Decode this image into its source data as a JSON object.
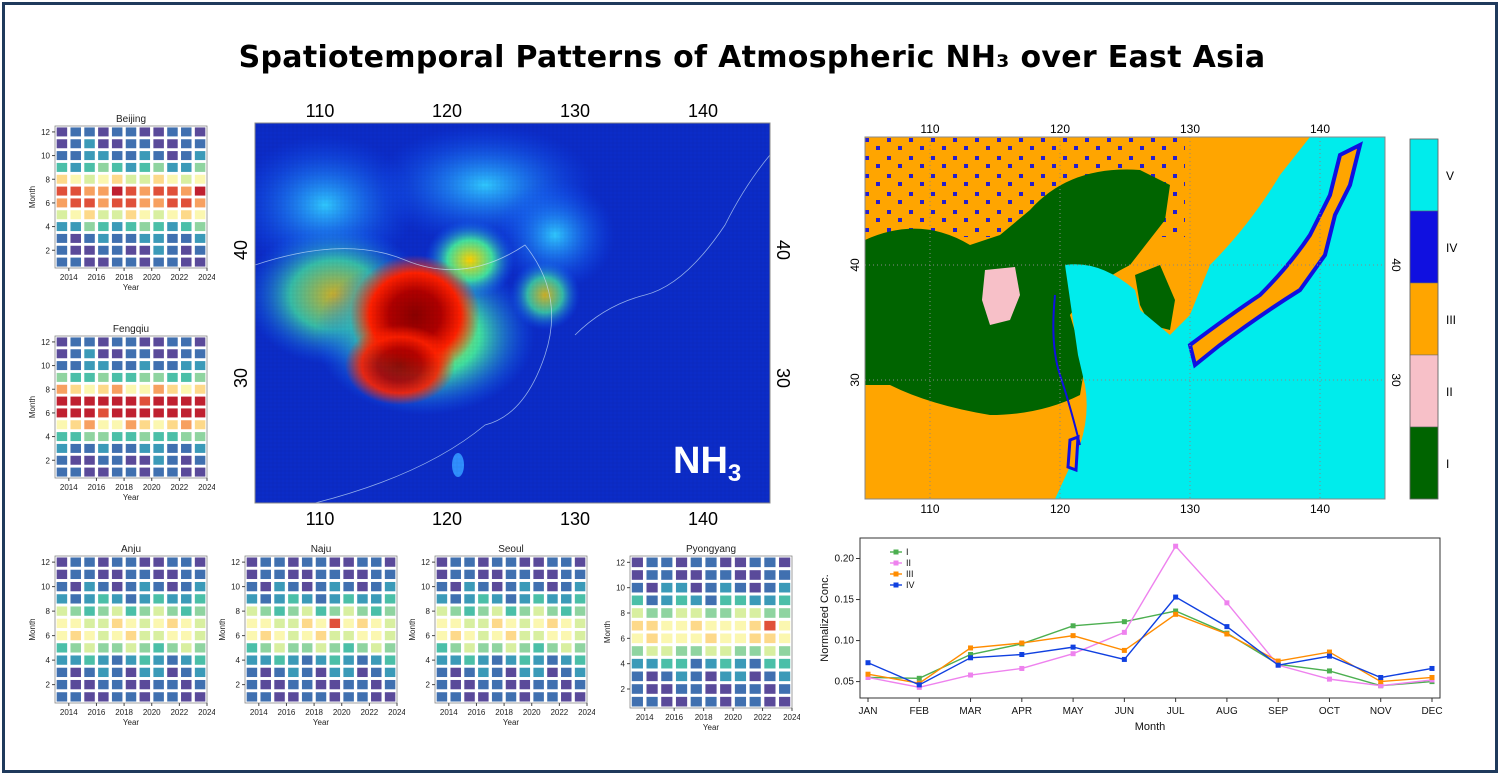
{
  "title": "Spatiotemporal Patterns of Atmospheric NH₃ over East Asia",
  "colors": {
    "frame": "#1f3a5c",
    "cluster_I": "#006400",
    "cluster_II": "#f7c0c8",
    "cluster_III": "#ffa500",
    "cluster_IV": "#1010e0",
    "cluster_V": "#00ecec",
    "line_I": "#4caf50",
    "line_II": "#ee82ee",
    "line_III": "#ff8c00",
    "line_IV": "#1040e0"
  },
  "heatmaps": [
    {
      "name": "Beijing",
      "xticks": [
        "2014",
        "2016",
        "2018",
        "2020",
        "2022",
        "2024"
      ],
      "yticks": [
        "2",
        "4",
        "6",
        "8",
        "10",
        "12"
      ],
      "xlabel": "Year",
      "ylabel": "Month"
    },
    {
      "name": "Fengqiu",
      "xticks": [
        "2014",
        "2016",
        "2018",
        "2020",
        "2022",
        "2024"
      ],
      "yticks": [
        "2",
        "4",
        "6",
        "8",
        "10",
        "12"
      ],
      "xlabel": "Year",
      "ylabel": "Month"
    },
    {
      "name": "Anju",
      "xticks": [
        "2014",
        "2016",
        "2018",
        "2020",
        "2022",
        "2024"
      ],
      "yticks": [
        "2",
        "4",
        "6",
        "8",
        "10",
        "12"
      ],
      "xlabel": "Year",
      "ylabel": "Month"
    },
    {
      "name": "Naju",
      "xticks": [
        "2014",
        "2016",
        "2018",
        "2020",
        "2022",
        "2024"
      ],
      "yticks": [
        "2",
        "4",
        "6",
        "8",
        "10",
        "12"
      ],
      "xlabel": "Year",
      "ylabel": "Month"
    },
    {
      "name": "Seoul",
      "xticks": [
        "2014",
        "2016",
        "2018",
        "2020",
        "2022",
        "2024"
      ],
      "yticks": [
        "2",
        "4",
        "6",
        "8",
        "10",
        "12"
      ],
      "xlabel": "Year",
      "ylabel": "Month"
    },
    {
      "name": "Pyongyang",
      "xticks": [
        "2014",
        "2016",
        "2018",
        "2020",
        "2022",
        "2024"
      ],
      "yticks": [
        "2",
        "4",
        "6",
        "8",
        "10",
        "12"
      ],
      "xlabel": "Year",
      "ylabel": "Month"
    }
  ],
  "nh3_map": {
    "label": "NH",
    "label_sub": "3",
    "lon_ticks": [
      "110",
      "120",
      "130",
      "140"
    ],
    "lat_ticks": [
      "40",
      "30"
    ]
  },
  "cluster_map": {
    "lon_ticks": [
      "110",
      "120",
      "130",
      "140"
    ],
    "lat_ticks": [
      "40",
      "30"
    ],
    "legend": [
      "V",
      "IV",
      "III",
      "II",
      "I"
    ]
  },
  "chart_data": {
    "type": "line",
    "categories": [
      "JAN",
      "FEB",
      "MAR",
      "APR",
      "MAY",
      "JUN",
      "JUL",
      "AUG",
      "SEP",
      "OCT",
      "NOV",
      "DEC"
    ],
    "series": [
      {
        "name": "I",
        "values": [
          0.055,
          0.054,
          0.083,
          0.096,
          0.118,
          0.123,
          0.136,
          0.109,
          0.071,
          0.063,
          0.045,
          0.05
        ]
      },
      {
        "name": "II",
        "values": [
          0.055,
          0.043,
          0.058,
          0.066,
          0.084,
          0.11,
          0.215,
          0.146,
          0.07,
          0.053,
          0.045,
          0.052
        ]
      },
      {
        "name": "III",
        "values": [
          0.059,
          0.048,
          0.091,
          0.097,
          0.106,
          0.088,
          0.132,
          0.108,
          0.075,
          0.086,
          0.05,
          0.055
        ]
      },
      {
        "name": "IV",
        "values": [
          0.073,
          0.046,
          0.079,
          0.083,
          0.092,
          0.077,
          0.153,
          0.117,
          0.07,
          0.081,
          0.055,
          0.066
        ]
      }
    ],
    "xlabel": "Month",
    "ylabel": "Normalized Conc.",
    "yticks": [
      "0.05",
      "0.10",
      "0.15",
      "0.20"
    ],
    "ylim": [
      0.03,
      0.225
    ],
    "grid": false,
    "legend_position": "top-left"
  }
}
